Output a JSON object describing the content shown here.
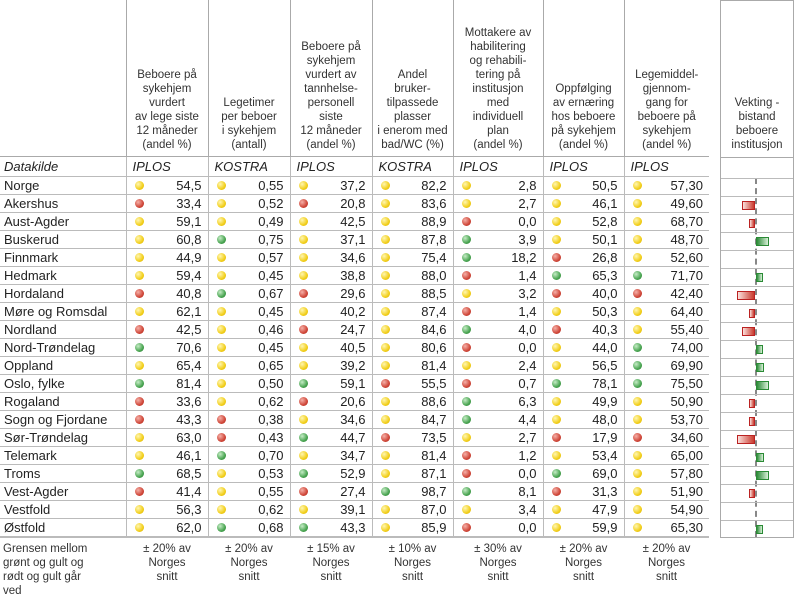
{
  "chart_data": {
    "type": "table",
    "headers": [
      "",
      "Beboere på\nsykehjem\nvurdert\nav lege siste\n12 måneder\n(andel %)",
      "Legetimer\nper beboer\ni sykehjem\n(antall)",
      "Beboere på\nsykehjem\nvurdert av\ntannhelse-\npersonell\nsiste\n12 måneder\n(andel %)",
      "Andel\nbruker-\ntilpassede\nplasser\ni enerom med\nbad/WC (%)",
      "Mottakere av\nhabilitering\nog rehabili-\ntering på\ninstitusjon\nmed\nindividuell\nplan\n(andel %)",
      "Oppfølging\nav ernæring\nhos beboere\npå sykehjem\n(andel %)",
      "Legemiddel-\ngjennom-\ngang for\nbeboere på\nsykehjem\n(andel %)"
    ],
    "source_label": "Datakilde",
    "sources": [
      "IPLOS",
      "KOSTRA",
      "IPLOS",
      "KOSTRA",
      "IPLOS",
      "IPLOS",
      "IPLOS"
    ],
    "status_colors": {
      "y": "#f2cf1c",
      "r": "#d0483a",
      "g": "#4aa552"
    },
    "rows": [
      {
        "name": "Norge",
        "values": [
          "54,5",
          "0,55",
          "37,2",
          "82,2",
          "2,8",
          "50,5",
          "57,30"
        ],
        "status": [
          "y",
          "y",
          "y",
          "y",
          "y",
          "y",
          "y"
        ],
        "weight": 0
      },
      {
        "name": "Akershus",
        "values": [
          "33,4",
          "0,52",
          "20,8",
          "83,6",
          "2,7",
          "46,1",
          "49,60"
        ],
        "status": [
          "r",
          "y",
          "r",
          "y",
          "y",
          "y",
          "y"
        ],
        "weight": -13
      },
      {
        "name": "Aust-Agder",
        "values": [
          "59,1",
          "0,49",
          "42,5",
          "88,9",
          "0,0",
          "52,8",
          "68,70"
        ],
        "status": [
          "y",
          "y",
          "y",
          "y",
          "r",
          "y",
          "y"
        ],
        "weight": -6
      },
      {
        "name": "Buskerud",
        "values": [
          "60,8",
          "0,75",
          "37,1",
          "87,8",
          "3,9",
          "50,1",
          "48,70"
        ],
        "status": [
          "y",
          "g",
          "y",
          "y",
          "g",
          "y",
          "y"
        ],
        "weight": 13
      },
      {
        "name": "Finnmark",
        "values": [
          "44,9",
          "0,57",
          "34,6",
          "75,4",
          "18,2",
          "26,8",
          "52,60"
        ],
        "status": [
          "y",
          "y",
          "y",
          "y",
          "g",
          "r",
          "y"
        ],
        "weight": 0
      },
      {
        "name": "Hedmark",
        "values": [
          "59,4",
          "0,45",
          "38,8",
          "88,0",
          "1,4",
          "65,3",
          "71,70"
        ],
        "status": [
          "y",
          "y",
          "y",
          "y",
          "r",
          "g",
          "g"
        ],
        "weight": 7
      },
      {
        "name": "Hordaland",
        "values": [
          "40,8",
          "0,67",
          "29,6",
          "88,5",
          "3,2",
          "40,0",
          "42,40"
        ],
        "status": [
          "r",
          "g",
          "r",
          "y",
          "y",
          "r",
          "r"
        ],
        "weight": -18
      },
      {
        "name": "Møre og Romsdal",
        "values": [
          "62,1",
          "0,45",
          "40,2",
          "87,4",
          "1,4",
          "50,3",
          "64,40"
        ],
        "status": [
          "y",
          "y",
          "y",
          "y",
          "r",
          "y",
          "y"
        ],
        "weight": -6
      },
      {
        "name": "Nordland",
        "values": [
          "42,5",
          "0,46",
          "24,7",
          "84,6",
          "4,0",
          "40,3",
          "55,40"
        ],
        "status": [
          "r",
          "y",
          "r",
          "y",
          "g",
          "r",
          "y"
        ],
        "weight": -13
      },
      {
        "name": "Nord-Trøndelag",
        "values": [
          "70,6",
          "0,45",
          "40,5",
          "80,6",
          "0,0",
          "44,0",
          "74,00"
        ],
        "status": [
          "g",
          "y",
          "y",
          "y",
          "r",
          "y",
          "g"
        ],
        "weight": 7
      },
      {
        "name": "Oppland",
        "values": [
          "65,4",
          "0,65",
          "39,2",
          "81,4",
          "2,4",
          "56,5",
          "69,90"
        ],
        "status": [
          "y",
          "y",
          "y",
          "y",
          "y",
          "y",
          "g"
        ],
        "weight": 8
      },
      {
        "name": "Oslo, fylke",
        "values": [
          "81,4",
          "0,50",
          "59,1",
          "55,5",
          "0,7",
          "78,1",
          "75,50"
        ],
        "status": [
          "g",
          "y",
          "g",
          "r",
          "r",
          "g",
          "g"
        ],
        "weight": 13
      },
      {
        "name": "Rogaland",
        "values": [
          "33,6",
          "0,62",
          "20,6",
          "88,6",
          "6,3",
          "49,9",
          "50,90"
        ],
        "status": [
          "r",
          "y",
          "r",
          "y",
          "g",
          "y",
          "y"
        ],
        "weight": -6
      },
      {
        "name": "Sogn og Fjordane",
        "values": [
          "43,3",
          "0,38",
          "34,6",
          "84,7",
          "4,4",
          "48,0",
          "53,70"
        ],
        "status": [
          "r",
          "r",
          "y",
          "y",
          "g",
          "y",
          "y"
        ],
        "weight": -6
      },
      {
        "name": "Sør-Trøndelag",
        "values": [
          "63,0",
          "0,43",
          "44,7",
          "73,5",
          "2,7",
          "17,9",
          "34,60"
        ],
        "status": [
          "y",
          "r",
          "g",
          "r",
          "y",
          "r",
          "r"
        ],
        "weight": -18
      },
      {
        "name": "Telemark",
        "values": [
          "46,1",
          "0,70",
          "34,7",
          "81,4",
          "1,2",
          "53,4",
          "65,00"
        ],
        "status": [
          "y",
          "g",
          "y",
          "y",
          "r",
          "y",
          "y"
        ],
        "weight": 8
      },
      {
        "name": "Troms",
        "values": [
          "68,5",
          "0,53",
          "52,9",
          "87,1",
          "0,0",
          "69,0",
          "57,80"
        ],
        "status": [
          "g",
          "y",
          "g",
          "y",
          "r",
          "g",
          "y"
        ],
        "weight": 13
      },
      {
        "name": "Vest-Agder",
        "values": [
          "41,4",
          "0,55",
          "27,4",
          "98,7",
          "8,1",
          "31,3",
          "51,90"
        ],
        "status": [
          "r",
          "y",
          "r",
          "g",
          "g",
          "r",
          "y"
        ],
        "weight": -6
      },
      {
        "name": "Vestfold",
        "values": [
          "56,3",
          "0,62",
          "39,1",
          "87,0",
          "3,4",
          "47,9",
          "54,90"
        ],
        "status": [
          "y",
          "y",
          "y",
          "y",
          "y",
          "y",
          "y"
        ],
        "weight": 0
      },
      {
        "name": "Østfold",
        "values": [
          "62,0",
          "0,68",
          "43,3",
          "85,9",
          "0,0",
          "59,9",
          "65,30"
        ],
        "status": [
          "y",
          "g",
          "g",
          "y",
          "r",
          "y",
          "y"
        ],
        "weight": 7
      }
    ],
    "footer": [
      "Grensen mellom\ngrønt og gult og\nrødt og gult går\nved",
      "± 20% av\nNorges\nsnitt",
      "± 20% av\nNorges\nsnitt",
      "± 15% av\nNorges\nsnitt",
      "± 10% av\nNorges\nsnitt",
      "± 30% av\nNorges\nsnitt",
      "± 20% av\nNorges\nsnitt",
      "± 20% av\nNorges\nsnitt"
    ],
    "weight_title": "Vekting -\nbistand\nbeboere\ninstitusjon"
  }
}
